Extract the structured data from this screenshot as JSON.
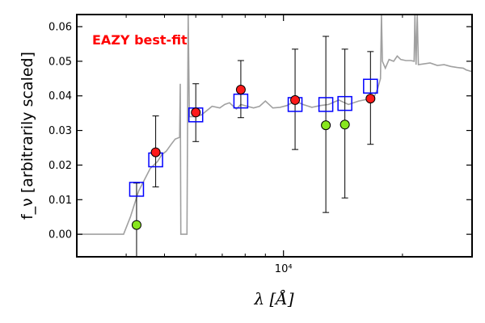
{
  "chart_data": {
    "type": "scatter",
    "title": "",
    "annotation": "EAZY best-fit",
    "annotation_color": "#ff0000",
    "xlabel": "λ [Å]",
    "ylabel": "f_ν [arbitrarily scaled]",
    "xscale": "log",
    "xlim": [
      3000,
      30000
    ],
    "ylim": [
      -0.0065,
      0.0635
    ],
    "x_ticks": [
      {
        "value": 10000,
        "label": "10⁴"
      }
    ],
    "y_ticks": [
      {
        "value": 0.0,
        "label": "0.00"
      },
      {
        "value": 0.01,
        "label": "0.01"
      },
      {
        "value": 0.02,
        "label": "0.02"
      },
      {
        "value": 0.03,
        "label": "0.03"
      },
      {
        "value": 0.04,
        "label": "0.04"
      },
      {
        "value": 0.05,
        "label": "0.05"
      },
      {
        "value": 0.06,
        "label": "0.06"
      }
    ],
    "grid": false,
    "colors": {
      "sed": "#a0a0a0",
      "model": "#0000ff",
      "observed": "#ff1a1a",
      "upper_limit": "#88e61e",
      "errorbar": "#000000"
    },
    "sed_template": [
      [
        3000,
        0.0
      ],
      [
        3940,
        0.0
      ],
      [
        4100,
        0.005
      ],
      [
        4300,
        0.0125
      ],
      [
        4600,
        0.019
      ],
      [
        4800,
        0.021
      ],
      [
        4920,
        0.023
      ],
      [
        5050,
        0.024
      ],
      [
        5200,
        0.026
      ],
      [
        5320,
        0.0275
      ],
      [
        5460,
        0.028
      ],
      [
        5480,
        0.0435
      ],
      [
        5500,
        0.0
      ],
      [
        5700,
        0.0
      ],
      [
        5740,
        0.065
      ],
      [
        5780,
        0.034
      ],
      [
        6000,
        0.034
      ],
      [
        6200,
        0.0345
      ],
      [
        6600,
        0.037
      ],
      [
        6900,
        0.0365
      ],
      [
        7100,
        0.0375
      ],
      [
        7300,
        0.038
      ],
      [
        7600,
        0.0362
      ],
      [
        7800,
        0.0375
      ],
      [
        8100,
        0.037
      ],
      [
        8400,
        0.0365
      ],
      [
        8700,
        0.037
      ],
      [
        9000,
        0.0385
      ],
      [
        9400,
        0.0365
      ],
      [
        9800,
        0.0367
      ],
      [
        10200,
        0.0372
      ],
      [
        10700,
        0.0385
      ],
      [
        11200,
        0.0375
      ],
      [
        11800,
        0.0367
      ],
      [
        12400,
        0.0372
      ],
      [
        13000,
        0.0375
      ],
      [
        13800,
        0.0388
      ],
      [
        14600,
        0.0375
      ],
      [
        15500,
        0.0385
      ],
      [
        16300,
        0.039
      ],
      [
        17000,
        0.04
      ],
      [
        17300,
        0.042
      ],
      [
        17600,
        0.045
      ],
      [
        17700,
        0.068
      ],
      [
        17800,
        0.05
      ],
      [
        18100,
        0.048
      ],
      [
        18500,
        0.0505
      ],
      [
        19000,
        0.05
      ],
      [
        19400,
        0.0515
      ],
      [
        19800,
        0.0505
      ],
      [
        20400,
        0.0502
      ],
      [
        21000,
        0.0502
      ],
      [
        21400,
        0.05
      ],
      [
        21500,
        0.068
      ],
      [
        21650,
        0.049
      ],
      [
        21800,
        0.068
      ],
      [
        21950,
        0.049
      ],
      [
        22500,
        0.0492
      ],
      [
        23500,
        0.0495
      ],
      [
        24500,
        0.0488
      ],
      [
        25500,
        0.049
      ],
      [
        26500,
        0.0485
      ],
      [
        27500,
        0.0482
      ],
      [
        28500,
        0.048
      ],
      [
        29000,
        0.0475
      ],
      [
        30000,
        0.047
      ]
    ],
    "series": [
      {
        "name": "",
        "kind": "model",
        "marker": "open-square",
        "x": [
          4250,
          4750,
          6000,
          7800,
          10700,
          12800,
          14300,
          16600
        ],
        "y": [
          0.013,
          0.0215,
          0.0345,
          0.0385,
          0.0375,
          0.0375,
          0.0378,
          0.0428
        ]
      },
      {
        "name": "",
        "kind": "observed",
        "marker": "filled-circle",
        "x": [
          4750,
          6000,
          7800,
          10700,
          16600
        ],
        "y": [
          0.0237,
          0.0352,
          0.0418,
          0.0388,
          0.0392
        ],
        "err_low": [
          0.0137,
          0.0268,
          0.0337,
          0.0245,
          0.026
        ],
        "err_high": [
          0.0342,
          0.0435,
          0.0502,
          0.0535,
          0.0528
        ]
      },
      {
        "name": "",
        "kind": "upper_limit",
        "marker": "filled-circle",
        "x": [
          4250,
          12800,
          14300
        ],
        "y": [
          0.0027,
          0.0315,
          0.0317
        ],
        "err_low": [
          -0.0065,
          0.0063,
          0.0105
        ],
        "err_high": [
          0.0148,
          0.0572,
          0.0535
        ]
      }
    ]
  }
}
